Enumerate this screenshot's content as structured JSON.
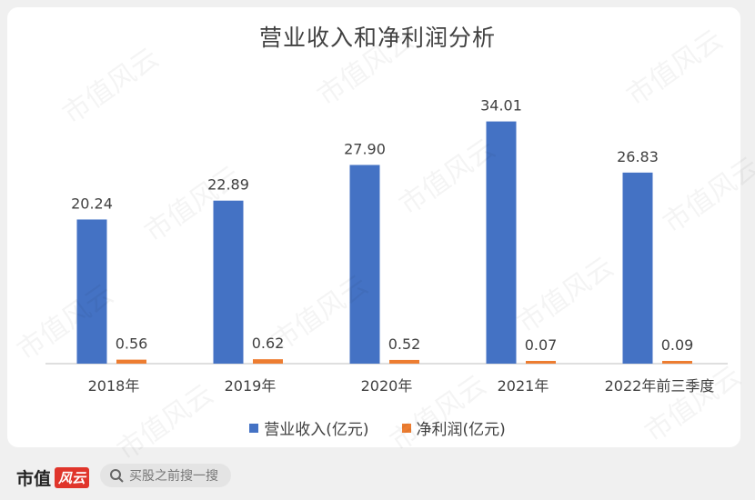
{
  "chart_data": {
    "type": "bar",
    "title": "营业收入和净利润分析",
    "categories": [
      "2018年",
      "2019年",
      "2020年",
      "2021年",
      "2022年前三季度"
    ],
    "series": [
      {
        "name": "营业收入(亿元)",
        "color": "#4472c4",
        "values": [
          20.24,
          22.89,
          27.9,
          34.01,
          26.83
        ]
      },
      {
        "name": "净利润(亿元)",
        "color": "#ed7d31",
        "values": [
          0.56,
          0.62,
          0.52,
          0.07,
          0.09
        ]
      }
    ],
    "value_labels": [
      [
        "20.24",
        "22.89",
        "27.90",
        "34.01",
        "26.83"
      ],
      [
        "0.56",
        "0.62",
        "0.52",
        "0.07",
        "0.09"
      ]
    ],
    "ylim": [
      0,
      36
    ],
    "grid": false,
    "legend_position": "bottom"
  },
  "footer": {
    "brand_text": "市值",
    "brand_badge": "风云",
    "search_placeholder": "买股之前搜一搜"
  },
  "watermark_text": "市值风云",
  "icons": {
    "search": "search-icon"
  }
}
